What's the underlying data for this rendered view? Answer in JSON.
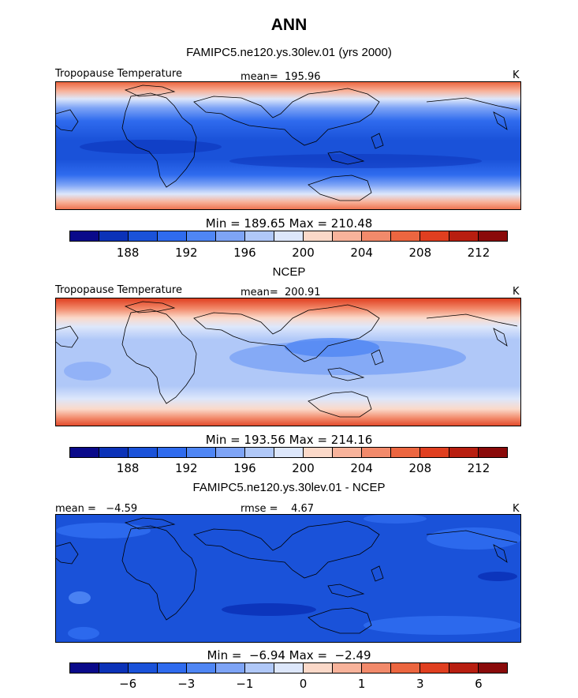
{
  "title": "ANN",
  "colors": {
    "abs_scale": [
      "#0a0a8a",
      "#0b32b8",
      "#1a52d9",
      "#2f6bee",
      "#4f86f4",
      "#7ea4f6",
      "#b0c8f8",
      "#dde7fb",
      "#fbd9c9",
      "#f8b39b",
      "#f28a6b",
      "#ec6640",
      "#e03f20",
      "#b81e10",
      "#8a0a0a"
    ],
    "diff_scale": [
      "#0a0a8a",
      "#0b32b8",
      "#1a52d9",
      "#2f6bee",
      "#4f86f4",
      "#7ea4f6",
      "#b0c8f8",
      "#dde7fb",
      "#fbd9c9",
      "#f8b39b",
      "#f28a6b",
      "#ec6640",
      "#e03f20",
      "#b81e10",
      "#8a0a0a"
    ],
    "coast": "#000000"
  },
  "panels": [
    {
      "heading": "FAMIPC5.ne120.ys.30lev.01 (yrs 2000)",
      "left_label": "Tropopause Temperature",
      "center_label": "mean=  195.96",
      "unit": "K",
      "minmax": "Min = 189.65 Max = 210.48",
      "ticks": [
        "188",
        "192",
        "196",
        "200",
        "204",
        "208",
        "212"
      ]
    },
    {
      "heading": "NCEP",
      "left_label": "Tropopause Temperature",
      "center_label": "mean=  200.91",
      "unit": "K",
      "minmax": "Min = 193.56 Max = 214.16",
      "ticks": [
        "188",
        "192",
        "196",
        "200",
        "204",
        "208",
        "212"
      ]
    },
    {
      "heading": "FAMIPC5.ne120.ys.30lev.01 - NCEP",
      "left_label": "mean =   −4.59",
      "center_label": "rmse =    4.67",
      "unit": "K",
      "minmax": "Min =  −6.94 Max =  −2.49",
      "ticks": [
        "−6",
        "−3",
        "−1",
        "0",
        "1",
        "3",
        "6"
      ]
    }
  ]
}
